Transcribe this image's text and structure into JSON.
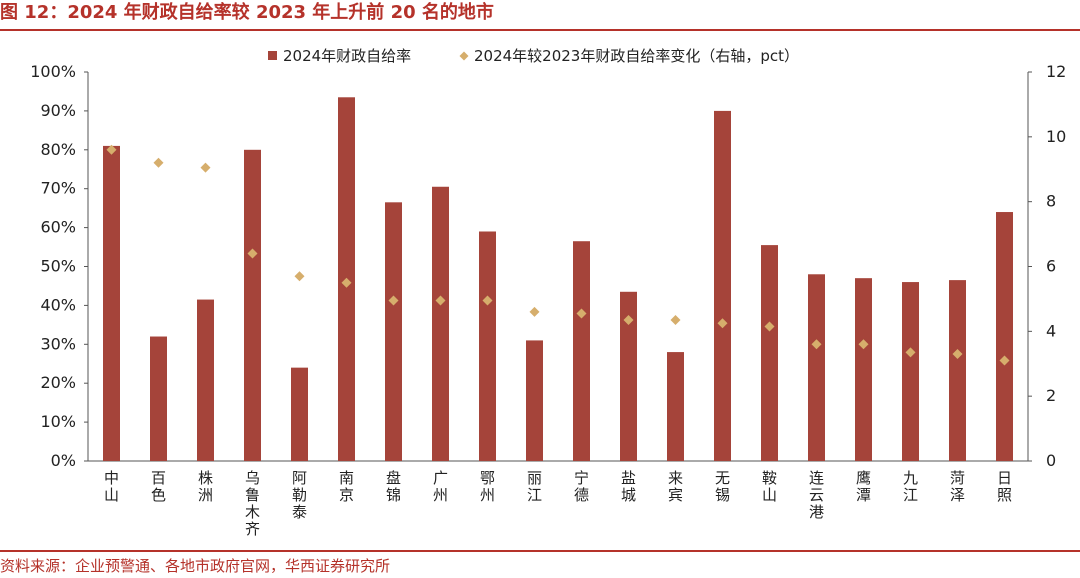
{
  "figure": {
    "title": "图 12：2024 年财政自给率较 2023 年上升前 20 名的地市",
    "source": "资料来源：企业预警通、各地市政府官网，华西证券研究所"
  },
  "colors": {
    "bar": "#a5443a",
    "marker": "#d6ae6c",
    "accent": "#b5322a",
    "axis": "#555555"
  },
  "chart_data": {
    "type": "bar",
    "categories": [
      "中山",
      "百色",
      "株洲",
      "乌鲁木齐",
      "阿勒泰",
      "南京",
      "盘锦",
      "广州",
      "鄂州",
      "丽江",
      "宁德",
      "盐城",
      "来宾",
      "无锡",
      "鞍山",
      "连云港",
      "鹰潭",
      "九江",
      "菏泽",
      "日照"
    ],
    "series": [
      {
        "name": "2024年财政自给率",
        "type": "bar",
        "axis": "left",
        "values": [
          81,
          32,
          41.5,
          80,
          24,
          93.5,
          66.5,
          70.5,
          59,
          31,
          56.5,
          43.5,
          28,
          90,
          55.5,
          48,
          47,
          46,
          46.5,
          64
        ]
      },
      {
        "name": "2024年较2023年财政自给率变化（右轴，pct）",
        "type": "scatter",
        "axis": "right",
        "values": [
          9.6,
          9.2,
          9.05,
          6.4,
          5.7,
          5.5,
          4.95,
          4.95,
          4.95,
          4.6,
          4.55,
          4.35,
          4.35,
          4.25,
          4.15,
          3.6,
          3.6,
          3.35,
          3.3,
          3.1
        ]
      }
    ],
    "ylim_left": [
      0,
      100
    ],
    "ylim_right": [
      0,
      12
    ],
    "left_ticks": [
      "0%",
      "10%",
      "20%",
      "30%",
      "40%",
      "50%",
      "60%",
      "70%",
      "80%",
      "90%",
      "100%"
    ],
    "right_ticks": [
      "0",
      "2",
      "4",
      "6",
      "8",
      "10",
      "12"
    ],
    "grid": false,
    "legend_position": "top-center"
  }
}
